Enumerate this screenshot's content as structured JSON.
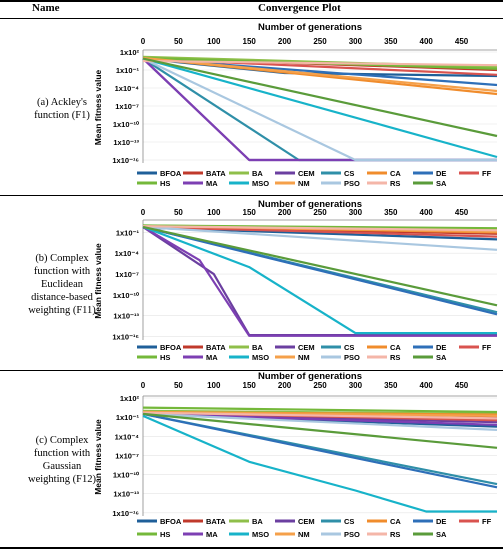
{
  "header": {
    "name": "Name",
    "plot": "Convergence Plot"
  },
  "rows": [
    {
      "label_lines": [
        "(a) Ackley's",
        "function (F1)"
      ]
    },
    {
      "label_lines": [
        "(b) Complex",
        "function with",
        "Euclidean",
        "distance-based",
        "weighting (F11)"
      ]
    },
    {
      "label_lines": [
        "(c) Complex",
        "function with",
        "Gaussian",
        "weighting (F12)"
      ]
    }
  ],
  "chart_data": [
    {
      "type": "line",
      "title": "Number of generations",
      "ylabel": "Mean fitness value",
      "x_ticks": [
        0,
        50,
        100,
        150,
        200,
        250,
        300,
        350,
        400,
        450
      ],
      "xlim": [
        0,
        500
      ],
      "y_log": true,
      "y_ticks": [
        "1x10²",
        "1x10⁻¹",
        "1x10⁻⁴",
        "1x10⁻⁷",
        "1x10⁻¹⁰",
        "1x10⁻¹³",
        "1x10⁻¹⁶"
      ],
      "y_tick_exponents": [
        2,
        -1,
        -4,
        -7,
        -10,
        -13,
        -16
      ],
      "ylim_exp": [
        -16.5,
        2
      ],
      "legend_position": "bottom",
      "legend": [
        "BFOA",
        "BATA",
        "BA",
        "CEM",
        "CS",
        "CA",
        "DE",
        "FF",
        "HS",
        "MA",
        "MSO",
        "NM",
        "PSO",
        "RS",
        "SA"
      ],
      "series": [
        {
          "name": "BFOA",
          "color": "#1f5f99",
          "x": [
            0,
            200,
            500
          ],
          "y": [
            0.9,
            -1.5,
            -2.0
          ]
        },
        {
          "name": "BATA",
          "color": "#c0392b",
          "x": [
            0,
            500
          ],
          "y": [
            1.0,
            -1.0
          ]
        },
        {
          "name": "BA",
          "color": "#8fbf4a",
          "x": [
            0,
            500
          ],
          "y": [
            1.2,
            -0.5
          ]
        },
        {
          "name": "CEM",
          "color": "#6b3fa0",
          "x": [
            0,
            150,
            500
          ],
          "y": [
            0.9,
            -16.0,
            -16.0
          ]
        },
        {
          "name": "CS",
          "color": "#2f8fa8",
          "x": [
            0,
            220,
            500
          ],
          "y": [
            0.9,
            -16.0,
            -16.0
          ]
        },
        {
          "name": "CA",
          "color": "#f08c2c",
          "x": [
            0,
            500
          ],
          "y": [
            1.0,
            -5.0
          ]
        },
        {
          "name": "DE",
          "color": "#2e6fb8",
          "x": [
            0,
            500
          ],
          "y": [
            0.9,
            -3.5
          ]
        },
        {
          "name": "FF",
          "color": "#d9534f",
          "x": [
            0,
            500
          ],
          "y": [
            0.9,
            -1.8
          ]
        },
        {
          "name": "HS",
          "color": "#74b83a",
          "x": [
            0,
            500
          ],
          "y": [
            1.0,
            -0.8
          ]
        },
        {
          "name": "MA",
          "color": "#7d3fb3",
          "x": [
            0,
            150,
            500
          ],
          "y": [
            0.9,
            -16.0,
            -16.0
          ]
        },
        {
          "name": "MSO",
          "color": "#17b3c9",
          "x": [
            0,
            500
          ],
          "y": [
            0.9,
            -15.5
          ]
        },
        {
          "name": "NM",
          "color": "#f5a04a",
          "x": [
            0,
            500
          ],
          "y": [
            1.0,
            -4.5
          ]
        },
        {
          "name": "PSO",
          "color": "#a9c7e0",
          "x": [
            0,
            300,
            500
          ],
          "y": [
            0.9,
            -16.0,
            -16.0
          ]
        },
        {
          "name": "RS",
          "color": "#f4b6a8",
          "x": [
            0,
            500
          ],
          "y": [
            0.5,
            -0.2
          ]
        },
        {
          "name": "SA",
          "color": "#5a9b3a",
          "x": [
            0,
            500
          ],
          "y": [
            0.9,
            -12.0
          ]
        }
      ]
    },
    {
      "type": "line",
      "title": "Number of generations",
      "ylabel": "Mean fitness value",
      "x_ticks": [
        0,
        50,
        100,
        150,
        200,
        250,
        300,
        350,
        400,
        450
      ],
      "xlim": [
        0,
        500
      ],
      "y_log": true,
      "y_ticks": [
        "1x10⁻¹",
        "1x10⁻⁴",
        "1x10⁻⁷",
        "1x10⁻¹⁰",
        "1x10⁻¹³",
        "1x10⁻¹⁶"
      ],
      "y_tick_exponents": [
        -1,
        -4,
        -7,
        -10,
        -13,
        -16
      ],
      "ylim_exp": [
        -16.5,
        0.5
      ],
      "legend_position": "bottom",
      "legend": [
        "BFOA",
        "BATA",
        "BA",
        "CEM",
        "CS",
        "CA",
        "DE",
        "FF",
        "HS",
        "MA",
        "MSO",
        "NM",
        "PSO",
        "RS",
        "SA"
      ],
      "series": [
        {
          "name": "BFOA",
          "color": "#1f5f99",
          "x": [
            0,
            500
          ],
          "y": [
            -0.3,
            -2.0
          ]
        },
        {
          "name": "BATA",
          "color": "#c0392b",
          "x": [
            0,
            500
          ],
          "y": [
            -0.2,
            -1.2
          ]
        },
        {
          "name": "BA",
          "color": "#8fbf4a",
          "x": [
            0,
            500
          ],
          "y": [
            0.0,
            -0.6
          ]
        },
        {
          "name": "CEM",
          "color": "#6b3fa0",
          "x": [
            0,
            100,
            150,
            500
          ],
          "y": [
            -0.2,
            -7.0,
            -15.8,
            -15.8
          ]
        },
        {
          "name": "CS",
          "color": "#2f8fa8",
          "x": [
            0,
            500
          ],
          "y": [
            -0.2,
            -12.5
          ]
        },
        {
          "name": "CA",
          "color": "#f08c2c",
          "x": [
            0,
            500
          ],
          "y": [
            -0.1,
            -1.0
          ]
        },
        {
          "name": "DE",
          "color": "#2e6fb8",
          "x": [
            0,
            500
          ],
          "y": [
            -0.2,
            -12.8
          ]
        },
        {
          "name": "FF",
          "color": "#d9534f",
          "x": [
            0,
            500
          ],
          "y": [
            -0.2,
            -1.6
          ]
        },
        {
          "name": "HS",
          "color": "#74b83a",
          "x": [
            0,
            500
          ],
          "y": [
            0.0,
            -0.4
          ]
        },
        {
          "name": "MA",
          "color": "#7d3fb3",
          "x": [
            0,
            80,
            150,
            500
          ],
          "y": [
            -0.2,
            -5.0,
            -15.9,
            -15.9
          ]
        },
        {
          "name": "MSO",
          "color": "#17b3c9",
          "x": [
            0,
            150,
            300,
            500
          ],
          "y": [
            -0.2,
            -6.0,
            -15.5,
            -15.5
          ]
        },
        {
          "name": "NM",
          "color": "#f5a04a",
          "x": [
            0,
            500
          ],
          "y": [
            -0.1,
            -0.9
          ]
        },
        {
          "name": "PSO",
          "color": "#a9c7e0",
          "x": [
            0,
            500
          ],
          "y": [
            -0.2,
            -3.5
          ]
        },
        {
          "name": "RS",
          "color": "#f4b6a8",
          "x": [
            0,
            500
          ],
          "y": [
            -0.1,
            -0.7
          ]
        },
        {
          "name": "SA",
          "color": "#5a9b3a",
          "x": [
            0,
            500
          ],
          "y": [
            -0.2,
            -11.5
          ]
        }
      ]
    },
    {
      "type": "line",
      "title": "Number of generations",
      "ylabel": "Mean fitness value",
      "x_ticks": [
        0,
        50,
        100,
        150,
        200,
        250,
        300,
        350,
        400,
        450
      ],
      "xlim": [
        0,
        500
      ],
      "y_log": true,
      "y_ticks": [
        "1x10²",
        "1x10⁻¹",
        "1x10⁻⁴",
        "1x10⁻⁷",
        "1x10⁻¹⁰",
        "1x10⁻¹³",
        "1x10⁻¹⁶"
      ],
      "y_tick_exponents": [
        2,
        -1,
        -4,
        -7,
        -10,
        -13,
        -16
      ],
      "ylim_exp": [
        -16.5,
        2
      ],
      "legend_position": "bottom",
      "legend": [
        "BFOA",
        "BATA",
        "BA",
        "CEM",
        "CS",
        "CA",
        "DE",
        "FF",
        "HS",
        "MA",
        "MSO",
        "NM",
        "PSO",
        "RS",
        "SA"
      ],
      "series": [
        {
          "name": "BFOA",
          "color": "#1f5f99",
          "x": [
            0,
            500
          ],
          "y": [
            -0.5,
            -2.5
          ]
        },
        {
          "name": "BATA",
          "color": "#c0392b",
          "x": [
            0,
            500
          ],
          "y": [
            -0.3,
            -1.0
          ]
        },
        {
          "name": "BA",
          "color": "#8fbf4a",
          "x": [
            0,
            500
          ],
          "y": [
            0.0,
            -0.5
          ]
        },
        {
          "name": "CEM",
          "color": "#6b3fa0",
          "x": [
            0,
            500
          ],
          "y": [
            -0.5,
            -1.8
          ]
        },
        {
          "name": "CS",
          "color": "#2f8fa8",
          "x": [
            0,
            500
          ],
          "y": [
            -0.5,
            -11.5
          ]
        },
        {
          "name": "CA",
          "color": "#f08c2c",
          "x": [
            0,
            500
          ],
          "y": [
            -0.2,
            -0.6
          ]
        },
        {
          "name": "DE",
          "color": "#2e6fb8",
          "x": [
            0,
            500
          ],
          "y": [
            -0.5,
            -12.0
          ]
        },
        {
          "name": "FF",
          "color": "#d9534f",
          "x": [
            0,
            500
          ],
          "y": [
            -0.3,
            -1.5
          ]
        },
        {
          "name": "HS",
          "color": "#74b83a",
          "x": [
            0,
            500
          ],
          "y": [
            0.5,
            -0.2
          ]
        },
        {
          "name": "MA",
          "color": "#7d3fb3",
          "x": [
            0,
            500
          ],
          "y": [
            -0.5,
            -2.2
          ]
        },
        {
          "name": "MSO",
          "color": "#17b3c9",
          "x": [
            0,
            150,
            300,
            400,
            500
          ],
          "y": [
            -0.8,
            -8.0,
            -12.5,
            -15.8,
            -15.8
          ]
        },
        {
          "name": "NM",
          "color": "#f5a04a",
          "x": [
            0,
            500
          ],
          "y": [
            -0.2,
            -0.8
          ]
        },
        {
          "name": "PSO",
          "color": "#a9c7e0",
          "x": [
            0,
            500
          ],
          "y": [
            -0.5,
            -3.0
          ]
        },
        {
          "name": "RS",
          "color": "#f4b6a8",
          "x": [
            0,
            500
          ],
          "y": [
            -0.3,
            -1.2
          ]
        },
        {
          "name": "SA",
          "color": "#5a9b3a",
          "x": [
            0,
            500
          ],
          "y": [
            -0.5,
            -5.8
          ]
        }
      ]
    }
  ]
}
